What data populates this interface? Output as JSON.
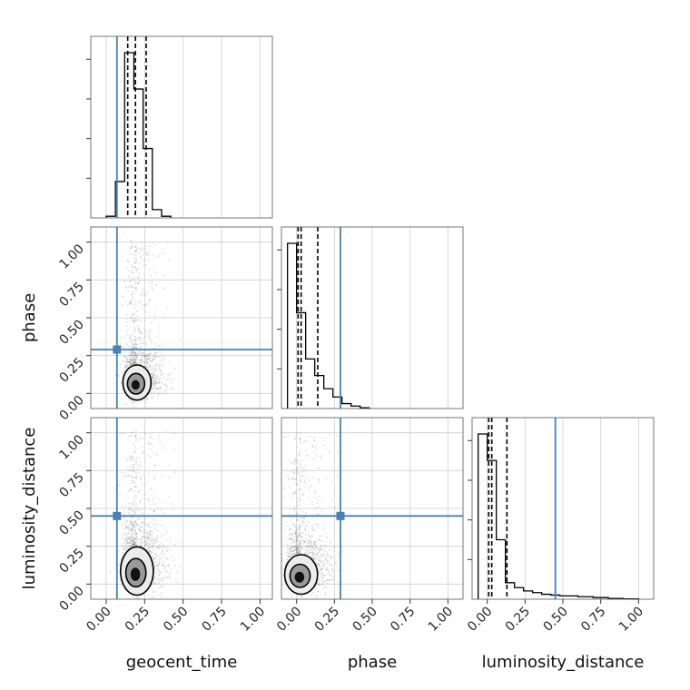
{
  "chart_data": {
    "type": "scatter",
    "subtype": "corner-plot",
    "parameters": [
      "geocent_time",
      "phase",
      "luminosity_distance"
    ],
    "axis_labels": {
      "geocent_time": "geocent_time",
      "phase": "phase",
      "luminosity_distance": "luminosity_distance"
    },
    "ticks": [
      0.0,
      0.25,
      0.5,
      0.75,
      1.0
    ],
    "tick_labels": [
      "0.00",
      "0.25",
      "0.50",
      "0.75",
      "1.00"
    ],
    "range": {
      "geocent_time": [
        -0.1,
        1.08
      ],
      "phase": [
        -0.1,
        1.1
      ],
      "luminosity_distance": [
        -0.1,
        1.1
      ]
    },
    "grid": true,
    "truth_color": "#4682b4",
    "truths": {
      "geocent_time": 0.07,
      "phase": 0.29,
      "luminosity_distance": 0.45
    },
    "quantiles": {
      "geocent_time": [
        0.14,
        0.19,
        0.26
      ],
      "phase": [
        0.01,
        0.03,
        0.14
      ],
      "luminosity_distance": [
        0.01,
        0.03,
        0.13
      ]
    },
    "histograms": {
      "geocent_time": {
        "edges": [
          0.0,
          0.06,
          0.12,
          0.18,
          0.24,
          0.3,
          0.36,
          0.42
        ],
        "counts": [
          0.01,
          0.22,
          1.0,
          0.78,
          0.42,
          0.05,
          0.01
        ]
      },
      "phase": {
        "edges": [
          -0.06,
          0.0,
          0.06,
          0.12,
          0.18,
          0.24,
          0.3,
          0.36,
          0.42,
          0.48
        ],
        "counts": [
          1.0,
          0.58,
          0.3,
          0.2,
          0.12,
          0.07,
          0.03,
          0.015,
          0.005
        ]
      },
      "luminosity_distance": {
        "edges": [
          -0.06,
          0.0,
          0.06,
          0.12,
          0.18,
          0.24,
          0.3,
          0.36,
          0.42,
          0.48,
          0.6,
          0.7,
          0.8,
          0.9,
          1.0
        ],
        "counts": [
          1.0,
          0.84,
          0.36,
          0.1,
          0.07,
          0.05,
          0.04,
          0.03,
          0.025,
          0.02,
          0.015,
          0.01,
          0.005,
          0.002
        ]
      }
    },
    "densities": {
      "phase_vs_geocent_time": {
        "center": [
          0.2,
          0.06
        ],
        "spread": [
          0.06,
          0.08
        ]
      },
      "luminosity_distance_vs_geocent_time": {
        "center": [
          0.2,
          0.07
        ],
        "spread": [
          0.07,
          0.11
        ]
      },
      "luminosity_distance_vs_phase": {
        "center": [
          0.03,
          0.05
        ],
        "spread": [
          0.07,
          0.09
        ]
      }
    }
  }
}
